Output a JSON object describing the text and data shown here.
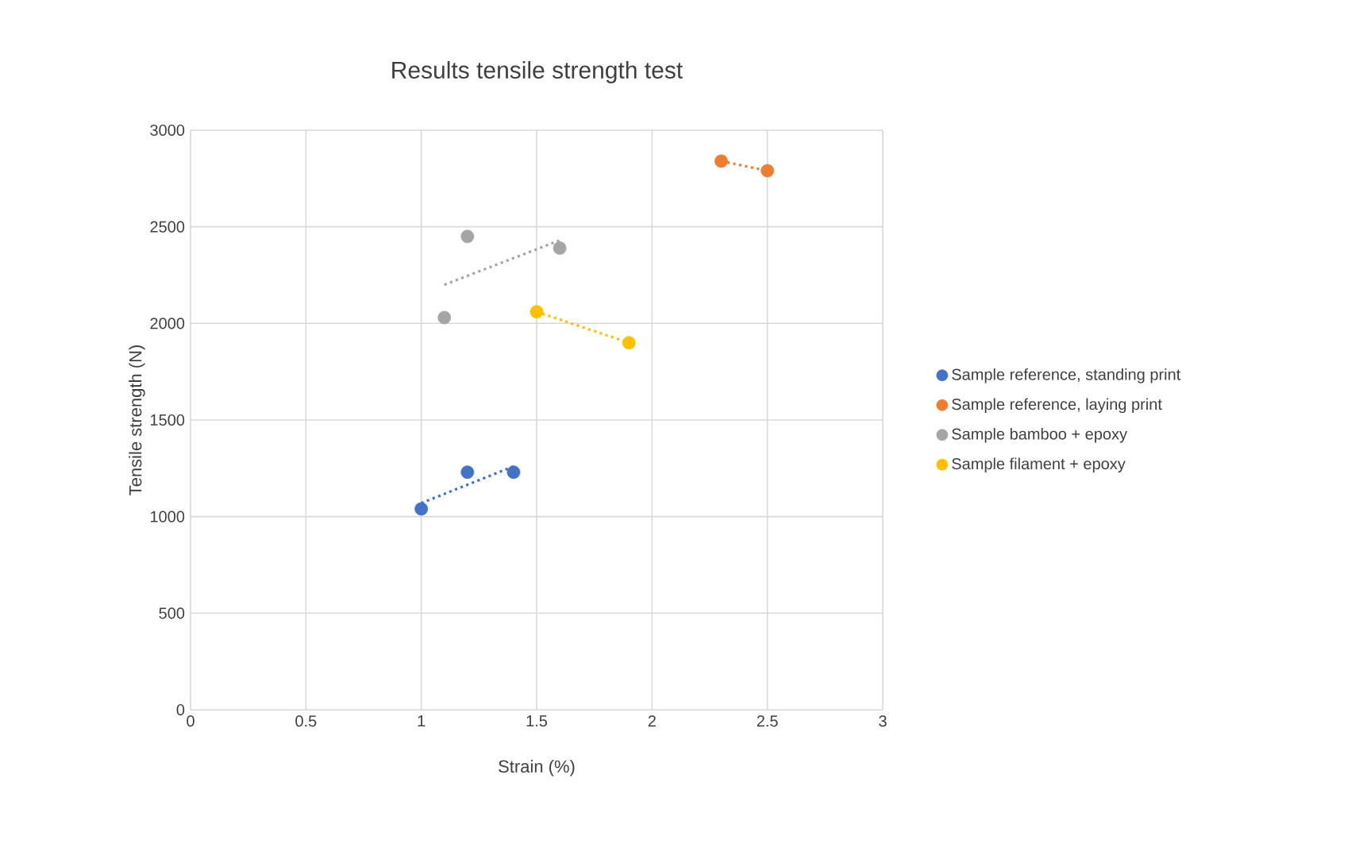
{
  "chart_data": {
    "type": "scatter",
    "title": "Results tensile strength test",
    "xlabel": "Strain (%)",
    "ylabel": "Tensile strength (N)",
    "xlim": [
      0,
      3
    ],
    "xticks": [
      0,
      0.5,
      1,
      1.5,
      2,
      2.5,
      3
    ],
    "ylim": [
      0,
      3000
    ],
    "yticks": [
      0,
      500,
      1000,
      1500,
      2000,
      2500,
      3000
    ],
    "grid": true,
    "legend": "right",
    "marker": "circle",
    "series": [
      {
        "name": "Sample reference, standing print",
        "color": "#4472c4",
        "x": [
          1,
          1.2,
          1.4
        ],
        "values": [
          1040,
          1230,
          1230
        ]
      },
      {
        "name": "Sample reference, laying print",
        "color": "#ed7d31",
        "x": [
          2.3,
          2.5
        ],
        "values": [
          2840,
          2790
        ]
      },
      {
        "name": "Sample bamboo + epoxy",
        "color": "#a5a5a5",
        "x": [
          1.1,
          1.2,
          1.6
        ],
        "values": [
          2030,
          2450,
          2390
        ]
      },
      {
        "name": "Sample filament + epoxy",
        "color": "#ffc000",
        "x": [
          1.5,
          1.9
        ],
        "values": [
          2060,
          1900
        ]
      },
      {
        "type": "line",
        "color": "#4472c4",
        "line_style": "dotted",
        "marker": "none",
        "x": [
          1,
          1.4
        ],
        "values": [
          1070,
          1260
        ]
      },
      {
        "type": "line",
        "color": "#ed7d31",
        "line_style": "dotted",
        "marker": "none",
        "x": [
          2.3,
          2.5
        ],
        "values": [
          2840,
          2790
        ]
      },
      {
        "type": "line",
        "color": "#a5a5a5",
        "line_style": "dotted",
        "marker": "none",
        "x": [
          1.1,
          1.6
        ],
        "values": [
          2200,
          2430
        ]
      },
      {
        "type": "line",
        "color": "#ffc000",
        "line_style": "dotted",
        "marker": "none",
        "x": [
          1.5,
          1.9
        ],
        "values": [
          2060,
          1900
        ]
      }
    ]
  }
}
